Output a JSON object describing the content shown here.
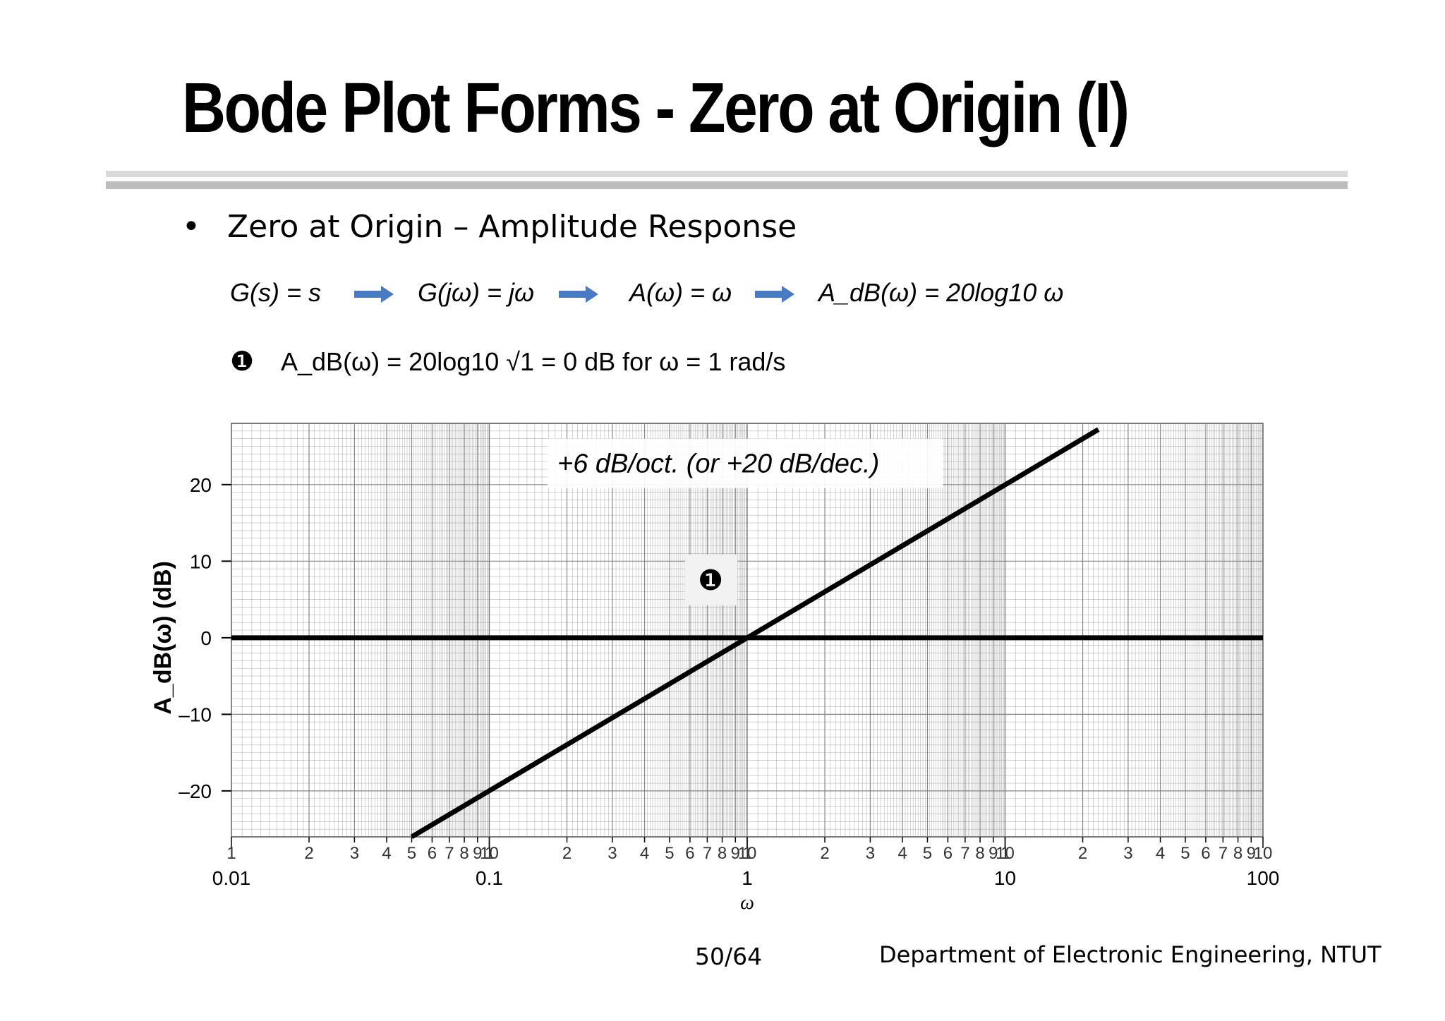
{
  "slide": {
    "title": "Bode Plot Forms - Zero at Origin (I)",
    "bullet": "Zero at Origin – Amplitude Response",
    "equations": [
      "G(s) = s",
      "G(jω) = jω",
      "A(ω) = ω",
      "A_dB(ω) = 20log10 ω"
    ],
    "marker_symbol": "❶",
    "marker_equation": "A_dB(ω) = 20log10 √1 = 0 dB  for ω = 1 rad/s",
    "footer": {
      "page": "50/64",
      "department": "Department of Electronic Engineering, NTUT"
    }
  },
  "chart_data": {
    "type": "line",
    "title": "",
    "xlabel": "ω",
    "ylabel": "A_dB(ω)  (dB)",
    "x_scale": "log",
    "xlim": [
      0.01,
      100
    ],
    "ylim": [
      -26,
      28
    ],
    "x_decade_labels": [
      "0.01",
      "0.1",
      "1",
      "10",
      "100"
    ],
    "x_minor_tick_labels": [
      "1",
      "2",
      "3",
      "4",
      "5",
      "6",
      "7",
      "8",
      "9",
      "10"
    ],
    "y_ticks": [
      20,
      10,
      0,
      -10,
      -20
    ],
    "y_tick_labels": [
      "20",
      "10",
      "0",
      "–10",
      "–20"
    ],
    "grid": true,
    "annotation": "+6 dB/oct. (or +20 dB/dec.)",
    "marker_label": "❶",
    "marker_point": {
      "x": 1,
      "y": 0
    },
    "series": [
      {
        "x": [
          0.05,
          23
        ],
        "y": [
          -26,
          27.2
        ]
      },
      {
        "x": [
          0.01,
          100
        ],
        "y": [
          0,
          0
        ]
      }
    ],
    "line_color": "#000000",
    "grid_color": "#7a7a7a"
  }
}
